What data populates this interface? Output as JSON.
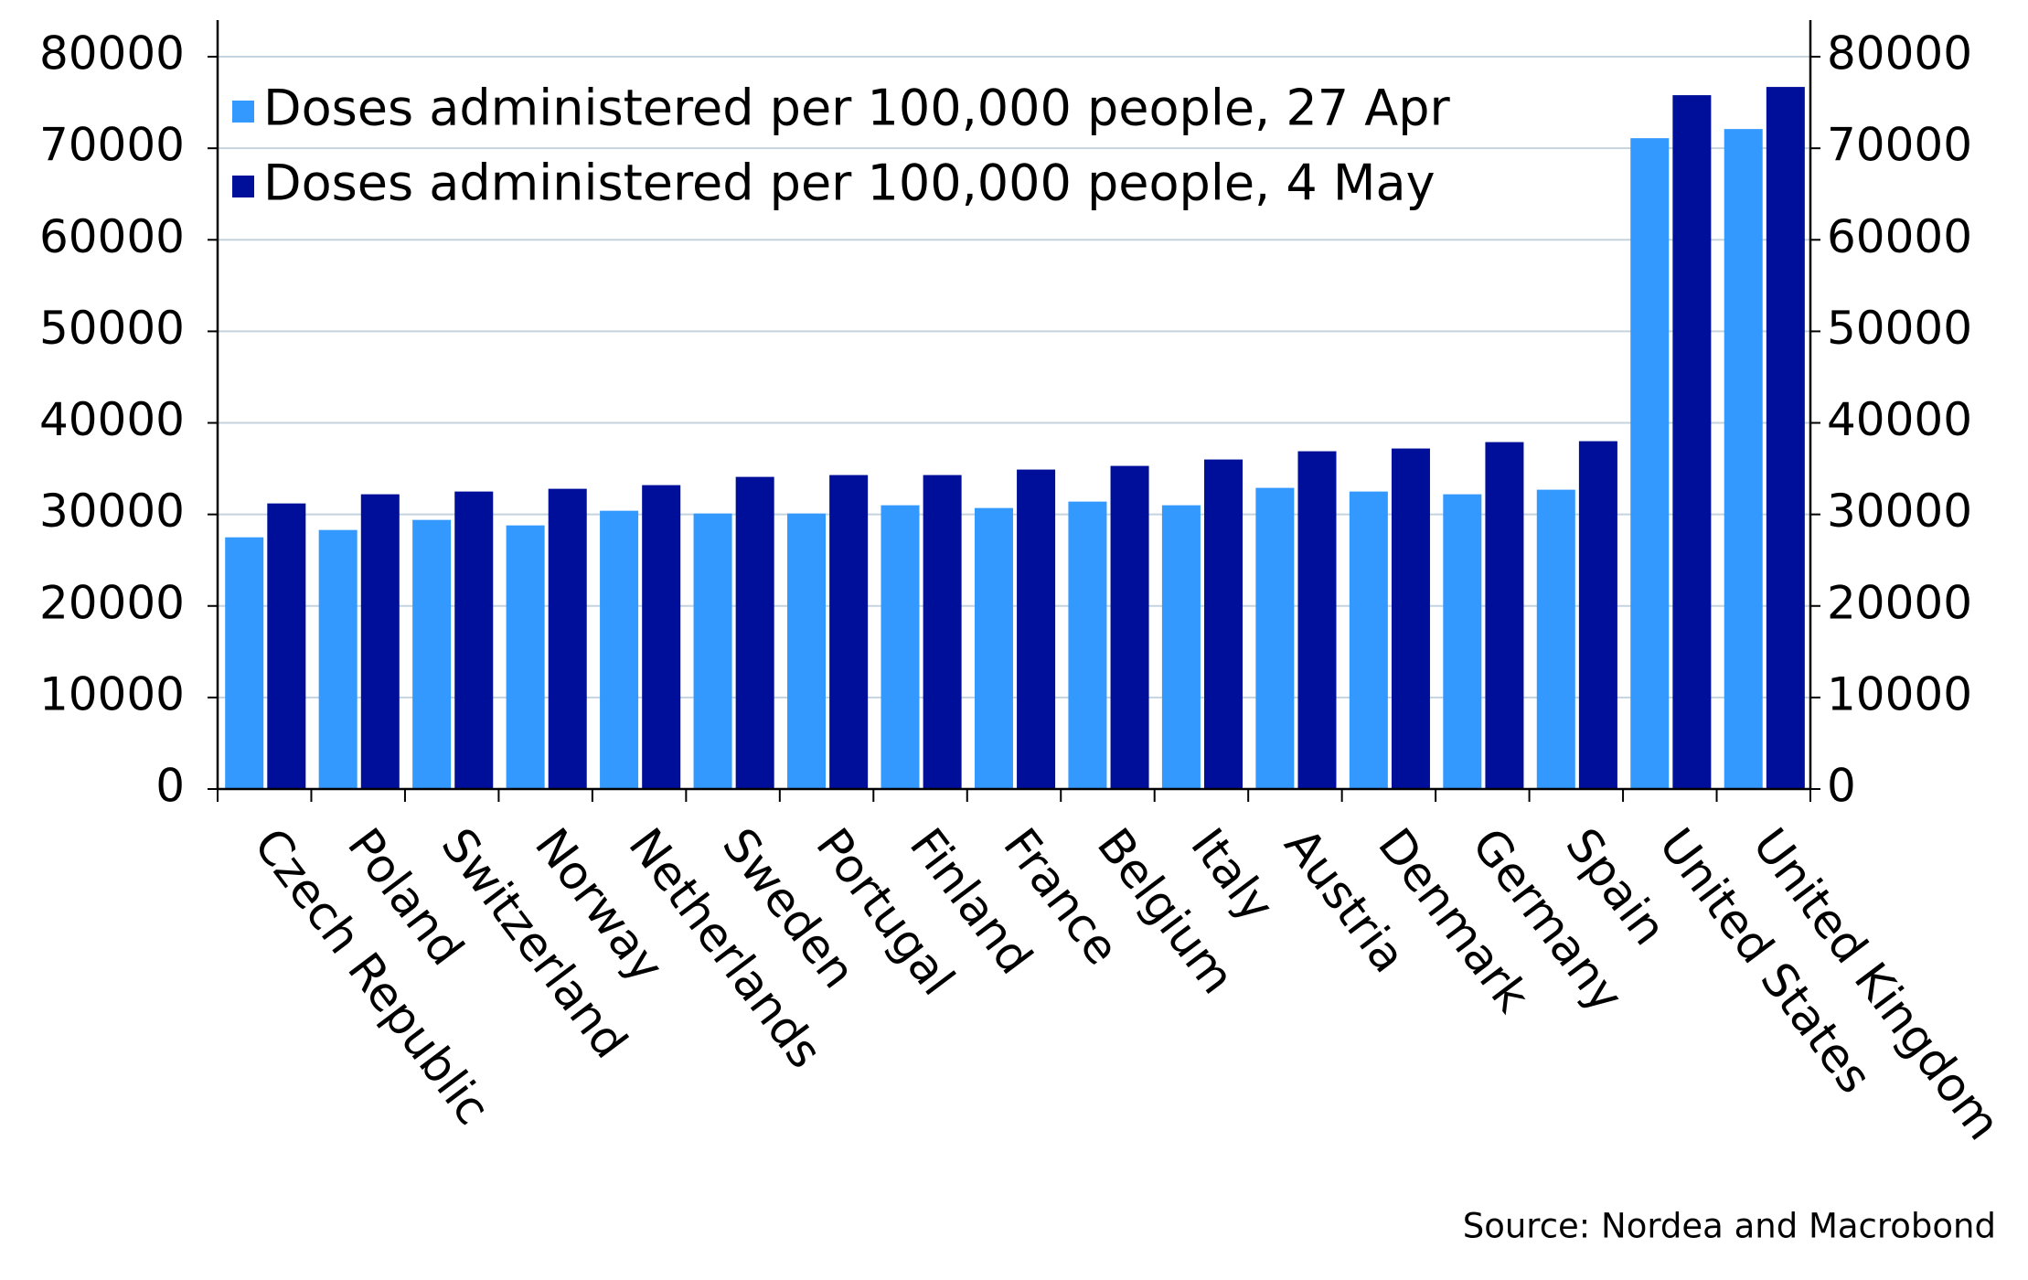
{
  "chart_data": {
    "type": "bar",
    "categories": [
      "Czech Republic",
      "Poland",
      "Switzerland",
      "Norway",
      "Netherlands",
      "Sweden",
      "Portugal",
      "Finland",
      "France",
      "Belgium",
      "Italy",
      "Austria",
      "Denmark",
      "Germany",
      "Spain",
      "United States",
      "United Kingdom"
    ],
    "series": [
      {
        "name": "Doses administered per 100,000 people, 27 Apr",
        "color": "#3399ff",
        "values": [
          27500,
          28300,
          29400,
          28800,
          30400,
          30100,
          30100,
          31000,
          30700,
          31400,
          31000,
          32900,
          32500,
          32200,
          32700,
          71100,
          72100
        ]
      },
      {
        "name": "Doses administered per 100,000 people, 4 May",
        "color": "#000f99",
        "values": [
          31200,
          32200,
          32500,
          32800,
          33200,
          34100,
          34300,
          34300,
          34900,
          35300,
          36000,
          36900,
          37200,
          37900,
          38000,
          75800,
          76700
        ]
      }
    ],
    "ylim": [
      0,
      84000
    ],
    "yticks": [
      0,
      10000,
      20000,
      30000,
      40000,
      50000,
      60000,
      70000,
      80000
    ],
    "y2lim": [
      0,
      84000
    ],
    "y2ticks": [
      0,
      10000,
      20000,
      30000,
      40000,
      50000,
      60000,
      70000,
      80000
    ],
    "grid": true,
    "legend": "upper left",
    "source": "Source: Nordea and Macrobond"
  }
}
